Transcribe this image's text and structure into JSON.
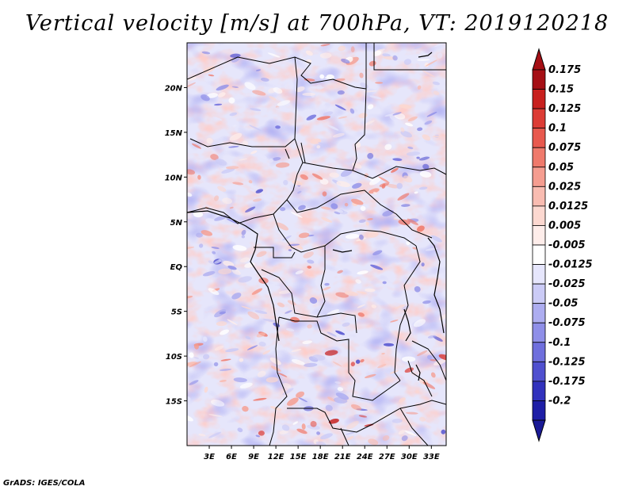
{
  "title": "Vertical velocity [m/s] at 700hPa, VT: 2019120218",
  "credit": "GrADS: IGES/COLA",
  "map": {
    "lon_range": [
      0,
      35
    ],
    "lat_range": [
      -20,
      25
    ],
    "lat_ticks": [
      {
        "lat": 20,
        "label": "20N"
      },
      {
        "lat": 15,
        "label": "15N"
      },
      {
        "lat": 10,
        "label": "10N"
      },
      {
        "lat": 5,
        "label": "5N"
      },
      {
        "lat": 0,
        "label": "EQ"
      },
      {
        "lat": -5,
        "label": "5S"
      },
      {
        "lat": -10,
        "label": "10S"
      },
      {
        "lat": -15,
        "label": "15S"
      }
    ],
    "lon_ticks": [
      {
        "lon": 3,
        "label": "3E"
      },
      {
        "lon": 6,
        "label": "6E"
      },
      {
        "lon": 9,
        "label": "9E"
      },
      {
        "lon": 12,
        "label": "12E"
      },
      {
        "lon": 15,
        "label": "15E"
      },
      {
        "lon": 18,
        "label": "18E"
      },
      {
        "lon": 21,
        "label": "21E"
      },
      {
        "lon": 24,
        "label": "24E"
      },
      {
        "lon": 27,
        "label": "27E"
      },
      {
        "lon": 30,
        "label": "30E"
      },
      {
        "lon": 33,
        "label": "33E"
      }
    ]
  },
  "colorbar": {
    "levels": [
      {
        "label": "0.175",
        "color": "#a50f15"
      },
      {
        "label": "0.15",
        "color": "#c8201e"
      },
      {
        "label": "0.125",
        "color": "#dc3c35"
      },
      {
        "label": "0.1",
        "color": "#e8594e"
      },
      {
        "label": "0.075",
        "color": "#ef7a6c"
      },
      {
        "label": "0.05",
        "color": "#f59d90"
      },
      {
        "label": "0.025",
        "color": "#f9bcb1"
      },
      {
        "label": "0.0125",
        "color": "#fcd8d0"
      },
      {
        "label": "0.005",
        "color": "#feedea"
      },
      {
        "label": "-0.005",
        "color": "#ffffff"
      },
      {
        "label": "-0.0125",
        "color": "#e6e6fc"
      },
      {
        "label": "-0.025",
        "color": "#cbcbf6"
      },
      {
        "label": "-0.05",
        "color": "#adadf0"
      },
      {
        "label": "-0.075",
        "color": "#8f8fe8"
      },
      {
        "label": "-0.1",
        "color": "#6f6fdd"
      },
      {
        "label": "-0.125",
        "color": "#5050cf"
      },
      {
        "label": "-0.175",
        "color": "#3232bd"
      },
      {
        "label": "-0.2",
        "color": "#1e1ea6"
      }
    ],
    "top_color": "#a50f15",
    "bottom_color": "#1a1a96"
  }
}
